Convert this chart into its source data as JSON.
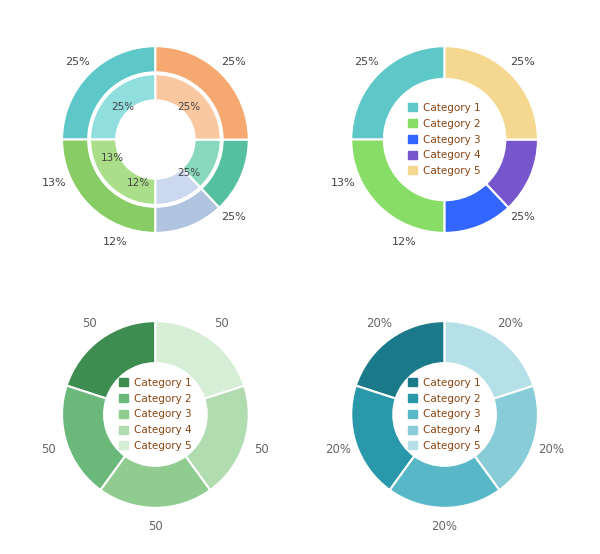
{
  "chart1": {
    "values": [
      25,
      25,
      12,
      13,
      25
    ],
    "outer_colors": [
      "#5ec8c8",
      "#88cc66",
      "#b0c4e0",
      "#55c0a0",
      "#f5a870"
    ],
    "inner_colors": [
      "#90dede",
      "#aade88",
      "#ccd8f0",
      "#88d8be",
      "#fac8a0"
    ],
    "start_angle": 90,
    "labels": [
      "25%",
      "25%",
      "12%",
      "13%",
      "25%"
    ]
  },
  "chart2": {
    "values": [
      25,
      25,
      12,
      13,
      25
    ],
    "colors": [
      "#5ec8c8",
      "#88dd66",
      "#3366ff",
      "#7755cc",
      "#f5d890"
    ],
    "start_angle": 90,
    "labels": [
      "25%",
      "25%",
      "12%",
      "13%",
      "25%"
    ],
    "legend": [
      "Category 1",
      "Category 2",
      "Category 3",
      "Category 4",
      "Category 5"
    ]
  },
  "chart3": {
    "values": [
      20,
      20,
      20,
      20,
      20
    ],
    "colors": [
      "#3d8c50",
      "#6ab87a",
      "#90cc90",
      "#b0dcb0",
      "#d5eed5"
    ],
    "start_angle": 90,
    "labels": [
      "50",
      "50",
      "50",
      "50",
      "50"
    ],
    "legend": [
      "Category 1",
      "Category 2",
      "Category 3",
      "Category 4",
      "Category 5"
    ]
  },
  "chart4": {
    "values": [
      20,
      20,
      20,
      20,
      20
    ],
    "colors": [
      "#1a7a8a",
      "#2898aa",
      "#58b8c8",
      "#88ccd8",
      "#b5e0e8"
    ],
    "start_angle": 90,
    "labels": [
      "20%",
      "20%",
      "20%",
      "20%",
      "20%"
    ],
    "legend": [
      "Category 1",
      "Category 2",
      "Category 3",
      "Category 4",
      "Category 5"
    ]
  },
  "label_color": "#444444",
  "legend_text_color": "#8B4513",
  "bg_color": "#ffffff"
}
